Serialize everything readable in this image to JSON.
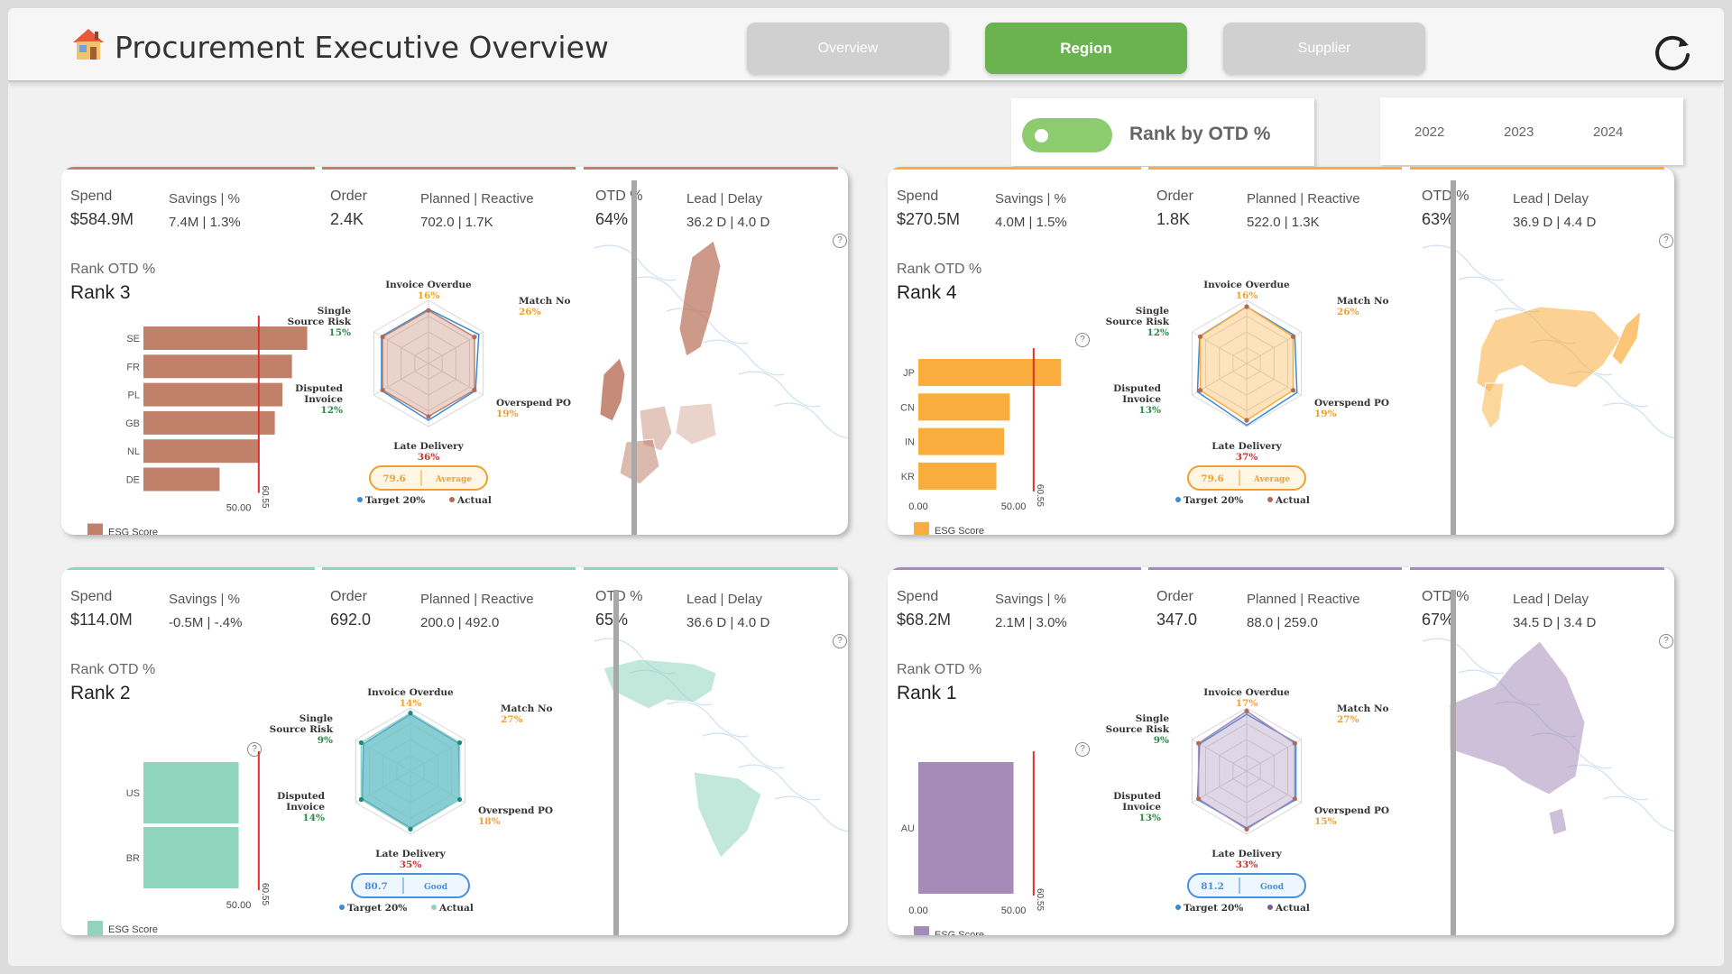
{
  "header": {
    "title": "Procurement Executive Overview",
    "nav": [
      "Overview",
      "Region",
      "Supplier"
    ],
    "active_nav": "Region"
  },
  "controls": {
    "toggle_label": "Rank by OTD %",
    "toggle_on": true,
    "years": [
      "2022",
      "2023",
      "2024"
    ]
  },
  "labels": {
    "spend": "Spend",
    "savings": "Savings | %",
    "order": "Order",
    "planned": "Planned | Reactive",
    "otd": "OTD %",
    "lead": "Lead | Delay",
    "rank_otd": "Rank OTD %",
    "esg": "ESG Score",
    "target": "Target 20%",
    "actual": "Actual",
    "help": "?",
    "radar_axes": [
      "Invoice Overdue",
      "Match No",
      "Overspend PO",
      "Late Delivery",
      "Disputed Invoice",
      "Single Source Risk"
    ]
  },
  "regions": [
    {
      "key": "europe",
      "color": "#c0806a",
      "spend": "$584.9M",
      "savings": "7.4M | 1.3%",
      "order": "2.4K",
      "planned": "702.0 | 1.7K",
      "otd": "64%",
      "lead": "36.2 D | 4.0 D",
      "rank": "Rank 3",
      "chart_data": {
        "type": "bar",
        "orientation": "horizontal",
        "categories": [
          "SE",
          "FR",
          "PL",
          "GB",
          "NL",
          "DE"
        ],
        "values": [
          86,
          78,
          73,
          69,
          61,
          40
        ],
        "x_ticks": [
          "50.00"
        ],
        "xlim": [
          0,
          90
        ],
        "reference_line": 60.55,
        "reference_label": "60.55",
        "legend": "ESG Score"
      },
      "radar": {
        "values": [
          "16%",
          "26%",
          "19%",
          "36%",
          "12%",
          "15%"
        ],
        "actual_radius": [
          0.84,
          0.84,
          0.84,
          0.84,
          0.84,
          0.84
        ],
        "target_radius": [
          0.86,
          0.92,
          0.86,
          0.9,
          0.86,
          0.86
        ],
        "esg": "79.6",
        "status": "Average",
        "status_color": "#f0a030"
      }
    },
    {
      "key": "asia",
      "color": "#f8ad3c",
      "spend": "$270.5M",
      "savings": "4.0M | 1.5%",
      "order": "1.8K",
      "planned": "522.0 | 1.3K",
      "otd": "63%",
      "lead": "36.9 D | 4.4 D",
      "rank": "Rank 4",
      "chart_data": {
        "type": "bar",
        "orientation": "horizontal",
        "categories": [
          "JP",
          "CN",
          "IN",
          "KR"
        ],
        "values": [
          75,
          48,
          45,
          41
        ],
        "x_ticks": [
          "0.00",
          "50.00"
        ],
        "xlim": [
          0,
          90
        ],
        "reference_line": 60.55,
        "reference_label": "60.55",
        "legend": "ESG Score"
      },
      "radar": {
        "values": [
          "16%",
          "26%",
          "19%",
          "37%",
          "13%",
          "12%"
        ],
        "actual_radius": [
          0.9,
          0.85,
          0.85,
          0.9,
          0.85,
          0.85
        ],
        "target_radius": [
          0.9,
          0.88,
          0.92,
          0.98,
          0.9,
          0.86
        ],
        "esg": "79.6",
        "status": "Average",
        "status_color": "#f0a030"
      }
    },
    {
      "key": "americas",
      "color": "#8fd5be",
      "spend": "$114.0M",
      "savings": "-0.5M | -.4%",
      "order": "692.0",
      "planned": "200.0 | 492.0",
      "otd": "65%",
      "lead": "36.6 D | 4.0 D",
      "rank": "Rank 2",
      "chart_data": {
        "type": "bar",
        "orientation": "horizontal",
        "categories": [
          "US",
          "BR"
        ],
        "values": [
          50,
          50
        ],
        "x_ticks": [
          "50.00"
        ],
        "xlim": [
          0,
          90
        ],
        "reference_line": 60.55,
        "reference_label": "60.55",
        "legend": "ESG Score"
      },
      "radar": {
        "values": [
          "14%",
          "27%",
          "18%",
          "35%",
          "14%",
          "9%"
        ],
        "actual_radius": [
          0.92,
          0.9,
          0.9,
          0.92,
          0.9,
          0.9
        ],
        "target_radius": [
          0.9,
          0.88,
          0.9,
          0.9,
          0.88,
          0.86
        ],
        "fill": "#4fb3d0",
        "esg": "80.7",
        "status": "Good",
        "status_color": "#4a90d9"
      }
    },
    {
      "key": "oceania",
      "color": "#a58cb8",
      "spend": "$68.2M",
      "savings": "2.1M | 3.0%",
      "order": "347.0",
      "planned": "88.0 | 259.0",
      "otd": "67%",
      "lead": "34.5 D | 3.4 D",
      "rank": "Rank 1",
      "chart_data": {
        "type": "bar",
        "orientation": "horizontal",
        "categories": [
          "AU"
        ],
        "values": [
          50
        ],
        "x_ticks": [
          "0.00",
          "50.00"
        ],
        "xlim": [
          0,
          90
        ],
        "reference_line": 60.55,
        "reference_label": "60.55",
        "legend": "ESG Score"
      },
      "radar": {
        "values": [
          "17%",
          "27%",
          "15%",
          "33%",
          "13%",
          "9%"
        ],
        "actual_radius": [
          0.95,
          0.88,
          0.88,
          0.92,
          0.88,
          0.88
        ],
        "target_radius": [
          0.9,
          0.9,
          0.9,
          0.9,
          0.9,
          0.86
        ],
        "esg": "81.2",
        "status": "Good",
        "status_color": "#4a90d9"
      }
    }
  ]
}
